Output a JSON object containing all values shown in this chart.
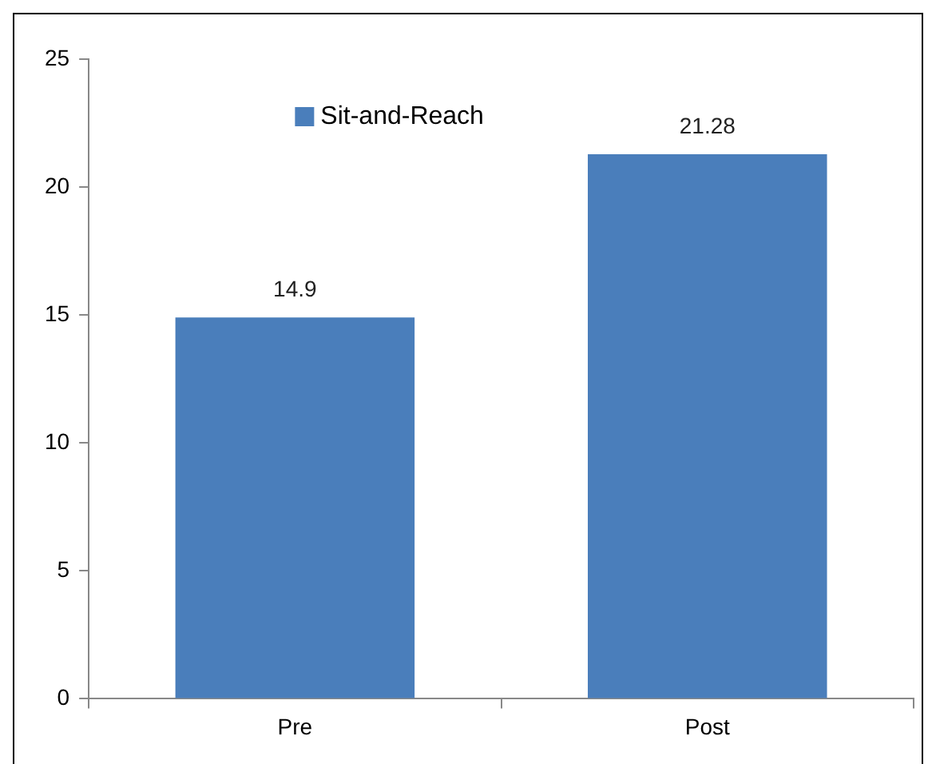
{
  "chart_data": {
    "type": "bar",
    "categories": [
      "Pre",
      "Post"
    ],
    "series": [
      {
        "name": "Sit-and-Reach",
        "color": "#4a7ebb",
        "values": [
          14.9,
          21.28
        ]
      }
    ],
    "ylim": [
      0,
      25
    ],
    "yticks": [
      0,
      5,
      10,
      15,
      20,
      25
    ],
    "grid": false,
    "legend": "top",
    "data_labels": true
  }
}
